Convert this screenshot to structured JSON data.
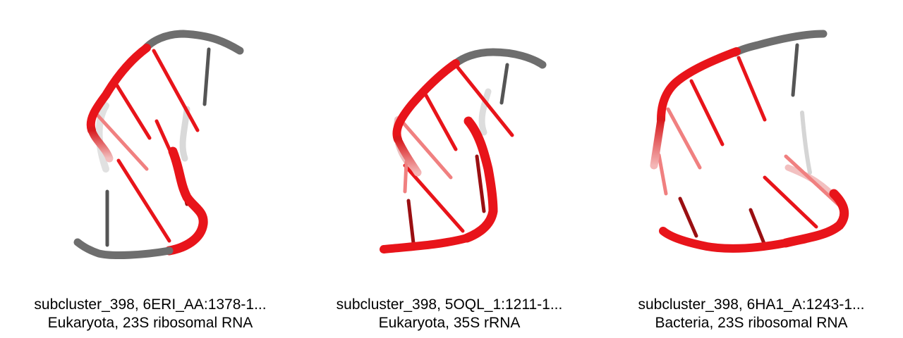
{
  "colors": {
    "highlight": "#e8141a",
    "dark_red": "#9a0f12",
    "backbone_grey": "#6e6e6e",
    "faded": "#d9d9d9",
    "background": "#ffffff"
  },
  "panels": [
    {
      "id_line": "subcluster_398, 6ERI_AA:1378-1...",
      "info_line": "Eukaryota, 23S ribosomal RNA"
    },
    {
      "id_line": "subcluster_398, 5OQL_1:1211-1...",
      "info_line": "Eukaryota, 35S rRNA"
    },
    {
      "id_line": "subcluster_398, 6HA1_A:1243-1...",
      "info_line": "Bacteria, 23S ribosomal RNA"
    }
  ]
}
